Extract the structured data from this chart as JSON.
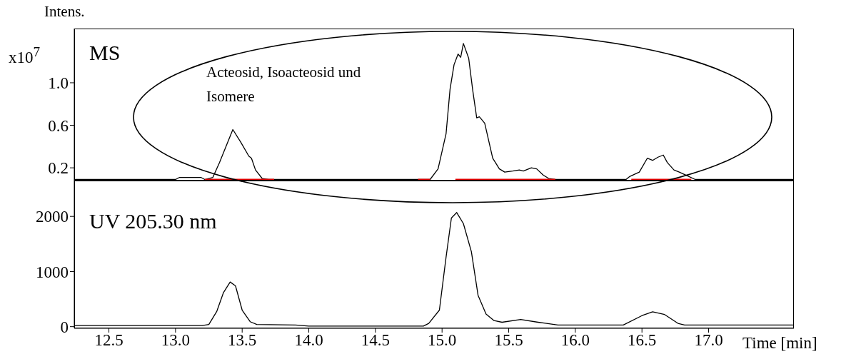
{
  "chart_data": [
    {
      "type": "line",
      "title": "MS",
      "ylabel": "Intens.",
      "annotations": [
        "x10$^{7}$",
        "Acteosid, Isoacteosid und Isomere"
      ],
      "xlim": [
        12.24,
        17.64
      ],
      "ylim": [
        0.08,
        1.51
      ],
      "yticks": [
        0.2,
        0.6,
        {
          "value": 1,
          "label": "1.0"
        }
      ],
      "tick_labels": "y",
      "grid": false,
      "marker": "none",
      "line_style": "solid",
      "series": [
        {
          "color": "#000000",
          "x": [
            12.24,
            13.0,
            13.03,
            13.19,
            13.22,
            13.28,
            13.33,
            13.43,
            13.49,
            13.55,
            13.57,
            13.6,
            13.65,
            13.7,
            14.91,
            14.97,
            15.03,
            15.06,
            15.09,
            15.12,
            15.14,
            15.16,
            15.2,
            15.23,
            15.26,
            15.28,
            15.32,
            15.38,
            15.43,
            15.47,
            15.53,
            15.58,
            15.61,
            15.67,
            15.71,
            15.76,
            15.8,
            15.85,
            16.38,
            16.41,
            16.48,
            16.54,
            16.58,
            16.62,
            16.66,
            16.69,
            16.74,
            16.78,
            16.85,
            16.9,
            17.64
          ],
          "values": [
            0.09,
            0.09,
            0.11,
            0.11,
            0.09,
            0.11,
            0.25,
            0.56,
            0.44,
            0.31,
            0.29,
            0.18,
            0.1,
            0.09,
            0.09,
            0.19,
            0.52,
            0.94,
            1.17,
            1.27,
            1.24,
            1.37,
            1.23,
            0.93,
            0.67,
            0.68,
            0.62,
            0.29,
            0.19,
            0.16,
            0.17,
            0.18,
            0.17,
            0.2,
            0.19,
            0.13,
            0.1,
            0.09,
            0.09,
            0.12,
            0.16,
            0.29,
            0.27,
            0.3,
            0.32,
            0.25,
            0.18,
            0.16,
            0.12,
            0.09,
            0.09
          ]
        },
        {
          "color": "#e00000",
          "x": [
            13.22,
            13.74,
            13.75,
            14.82,
            14.91,
            14.92,
            15.1,
            15.85,
            15.86,
            16.42,
            16.87
          ],
          "values": [
            0.09,
            0.09,
            null,
            0.09,
            0.09,
            null,
            0.09,
            0.09,
            null,
            0.09,
            0.09
          ]
        }
      ]
    },
    {
      "type": "line",
      "title": "UV 205.30 nm",
      "xlabel": "Time [min]",
      "xlim": [
        12.24,
        17.64
      ],
      "ylim": [
        -30,
        2650
      ],
      "xticks": [
        12.5,
        {
          "value": 13,
          "label": "13.0"
        },
        13.5,
        {
          "value": 14,
          "label": "14.0"
        },
        14.5,
        {
          "value": 15,
          "label": "15.0"
        },
        15.5,
        {
          "value": 16,
          "label": "16.0"
        },
        16.5,
        {
          "value": 17,
          "label": "17.0"
        }
      ],
      "yticks": [
        0,
        1000,
        2000
      ],
      "grid": false,
      "marker": "none",
      "line_style": "solid",
      "series": [
        {
          "color": "#000000",
          "x": [
            12.24,
            13.2,
            13.25,
            13.31,
            13.36,
            13.41,
            13.45,
            13.5,
            13.56,
            13.61,
            13.9,
            14.0,
            14.86,
            14.9,
            14.98,
            15.03,
            15.07,
            15.11,
            15.16,
            15.22,
            15.27,
            15.33,
            15.39,
            15.45,
            15.59,
            15.72,
            15.87,
            16.36,
            16.5,
            16.58,
            16.67,
            16.77,
            16.82,
            17.64
          ],
          "values": [
            20,
            20,
            40,
            280,
            620,
            810,
            740,
            300,
            90,
            40,
            30,
            10,
            10,
            60,
            300,
            1260,
            1970,
            2070,
            1870,
            1360,
            570,
            230,
            110,
            80,
            130,
            80,
            30,
            30,
            200,
            270,
            220,
            60,
            30,
            30
          ]
        }
      ]
    }
  ]
}
